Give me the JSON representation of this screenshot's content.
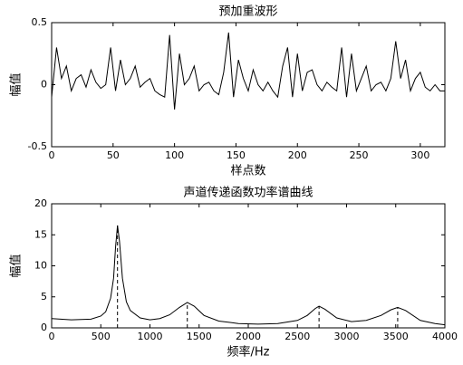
{
  "chart_data": [
    {
      "type": "line",
      "title": "预加重波形",
      "xlabel": "样点数",
      "ylabel": "幅值",
      "color": "#000000",
      "x": [
        0,
        4,
        8,
        12,
        16,
        20,
        24,
        28,
        32,
        36,
        40,
        44,
        48,
        52,
        56,
        60,
        64,
        68,
        72,
        76,
        80,
        84,
        88,
        92,
        96,
        100,
        104,
        108,
        112,
        116,
        120,
        124,
        128,
        132,
        136,
        140,
        144,
        148,
        152,
        156,
        160,
        164,
        168,
        172,
        176,
        180,
        184,
        188,
        192,
        196,
        200,
        204,
        208,
        212,
        216,
        220,
        224,
        228,
        232,
        236,
        240,
        244,
        248,
        252,
        256,
        260,
        264,
        268,
        272,
        276,
        280,
        284,
        288,
        292,
        296,
        300,
        304,
        308,
        312,
        316,
        320
      ],
      "values": [
        -0.1,
        0.3,
        0.05,
        0.15,
        -0.05,
        0.05,
        0.08,
        -0.02,
        0.12,
        0.02,
        -0.03,
        0.0,
        0.3,
        -0.05,
        0.2,
        0.0,
        0.05,
        0.15,
        -0.02,
        0.02,
        0.05,
        -0.05,
        -0.08,
        -0.1,
        0.4,
        -0.2,
        0.25,
        0.0,
        0.05,
        0.15,
        -0.05,
        0.0,
        0.02,
        -0.05,
        -0.08,
        0.1,
        0.42,
        -0.1,
        0.2,
        0.05,
        -0.05,
        0.12,
        0.0,
        -0.05,
        0.02,
        -0.05,
        -0.1,
        0.15,
        0.3,
        -0.1,
        0.25,
        -0.05,
        0.1,
        0.12,
        0.0,
        -0.05,
        0.02,
        -0.02,
        -0.05,
        0.3,
        -0.1,
        0.25,
        -0.05,
        0.05,
        0.15,
        -0.05,
        0.0,
        0.02,
        -0.05,
        0.05,
        0.35,
        0.05,
        0.2,
        -0.05,
        0.05,
        0.1,
        -0.02,
        -0.05,
        0.0,
        -0.05,
        -0.05
      ],
      "xlim": [
        0,
        320
      ],
      "xticks": [
        0,
        50,
        100,
        150,
        200,
        250,
        300
      ],
      "ylim": [
        -0.5,
        0.5
      ],
      "yticks": [
        -0.5,
        0,
        0.5
      ]
    },
    {
      "type": "line",
      "title": "声道传递函数功率谱曲线",
      "xlabel": "频率/Hz",
      "ylabel": "幅值",
      "color": "#000000",
      "x": [
        0,
        200,
        400,
        500,
        550,
        600,
        630,
        650,
        670,
        690,
        720,
        760,
        800,
        900,
        1000,
        1100,
        1200,
        1300,
        1380,
        1450,
        1550,
        1700,
        1900,
        2100,
        2300,
        2500,
        2600,
        2680,
        2720,
        2780,
        2900,
        3050,
        3200,
        3350,
        3450,
        3520,
        3600,
        3750,
        3900,
        4000
      ],
      "values": [
        1.5,
        1.3,
        1.4,
        1.9,
        2.6,
        4.8,
        8,
        13,
        16.5,
        14,
        8,
        4.2,
        2.8,
        1.6,
        1.3,
        1.5,
        2.1,
        3.3,
        4.1,
        3.5,
        2.0,
        1.1,
        0.7,
        0.6,
        0.7,
        1.2,
        2.0,
        3.1,
        3.5,
        3.0,
        1.6,
        1.0,
        1.2,
        2.0,
        2.9,
        3.3,
        2.8,
        1.2,
        0.7,
        0.5
      ],
      "markers": {
        "x": [
          670,
          1380,
          2720,
          3520
        ],
        "values": [
          16.5,
          4.1,
          3.5,
          3.3
        ],
        "style": "dashed"
      },
      "xlim": [
        0,
        4000
      ],
      "xticks": [
        0,
        500,
        1000,
        1500,
        2000,
        2500,
        3000,
        3500,
        4000
      ],
      "ylim": [
        0,
        20
      ],
      "yticks": [
        0,
        5,
        10,
        15,
        20
      ]
    }
  ]
}
